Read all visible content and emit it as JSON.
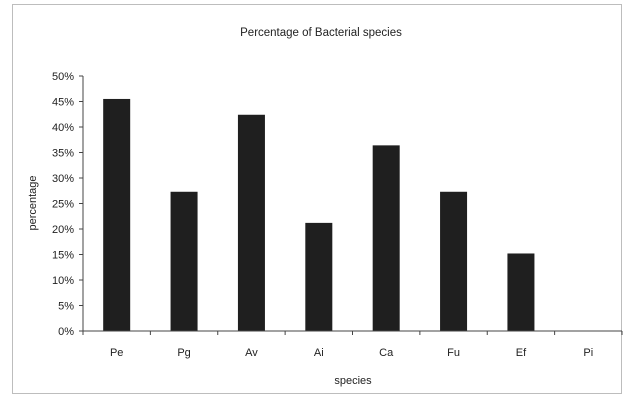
{
  "chart_data": {
    "type": "bar",
    "title": "Percentage of Bacterial species",
    "xlabel": "species",
    "ylabel": "percentage",
    "categories": [
      "Pe",
      "Pg",
      "Av",
      "Ai",
      "Ca",
      "Fu",
      "Ef",
      "Pi"
    ],
    "values": [
      45.5,
      27.3,
      42.4,
      21.2,
      36.4,
      27.3,
      15.2,
      0
    ],
    "ylim": [
      0,
      50
    ],
    "yticks": [
      "0%",
      "5%",
      "10%",
      "15%",
      "20%",
      "25%",
      "30%",
      "35%",
      "40%",
      "45%",
      "50%"
    ],
    "grid": false,
    "legend": "none",
    "colors": {
      "bar": "#1f1f1f",
      "axis": "#444444",
      "frame": "#bdbdbd"
    }
  }
}
